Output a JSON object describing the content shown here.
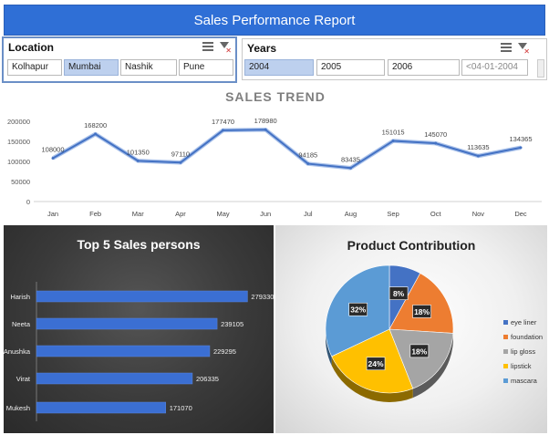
{
  "header": {
    "title": "Sales Performance Report"
  },
  "location_slicer": {
    "label": "Location",
    "items": [
      {
        "label": "Kolhapur",
        "selected": false
      },
      {
        "label": "Mumbai",
        "selected": true
      },
      {
        "label": "Nashik",
        "selected": false
      },
      {
        "label": "Pune",
        "selected": false
      }
    ]
  },
  "years_slicer": {
    "label": "Years",
    "items": [
      {
        "label": "2004",
        "selected": true
      },
      {
        "label": "2005",
        "selected": false
      },
      {
        "label": "2006",
        "selected": false
      },
      {
        "label": "<04-01-2004",
        "selected": false
      }
    ]
  },
  "chart_data": [
    {
      "type": "line",
      "title": "SALES TREND",
      "categories": [
        "Jan",
        "Feb",
        "Mar",
        "Apr",
        "May",
        "Jun",
        "Jul",
        "Aug",
        "Sep",
        "Oct",
        "Nov",
        "Dec"
      ],
      "values": [
        108000,
        168200,
        101350,
        97110,
        177470,
        178980,
        94185,
        83435,
        151015,
        145070,
        113635,
        134365
      ],
      "labels": [
        "108000",
        "168200",
        "101350",
        "97110",
        "177470",
        "178980",
        "94185",
        "83435",
        "151015",
        "145070",
        "113635",
        "134365"
      ],
      "ylim": [
        0,
        200000
      ],
      "yticks": [
        "0",
        "50000",
        "100000",
        "150000",
        "200000"
      ],
      "grid": false,
      "color": "#4472c4"
    },
    {
      "type": "bar",
      "orientation": "horizontal",
      "title": "Top 5 Sales persons",
      "categories": [
        "Harish",
        "Neeta",
        "Anushka",
        "Virat",
        "Mukesh"
      ],
      "values": [
        279330,
        239105,
        229295,
        206335,
        171070
      ],
      "labels": [
        "279330",
        "239105",
        "229295",
        "206335",
        "171070"
      ],
      "xlim": [
        0,
        300000
      ],
      "color": "#3b6fd3"
    },
    {
      "type": "pie",
      "title": "Product Contribution",
      "categories": [
        "eye liner",
        "foundation",
        "lip gloss",
        "lipstick",
        "mascara"
      ],
      "values": [
        8,
        18,
        18,
        24,
        32
      ],
      "labels": [
        "8%",
        "18%",
        "18%",
        "24%",
        "32%"
      ],
      "colors": [
        "#4472c4",
        "#ed7d31",
        "#a5a5a5",
        "#ffc000",
        "#5b9bd5"
      ],
      "legend": "right"
    }
  ]
}
